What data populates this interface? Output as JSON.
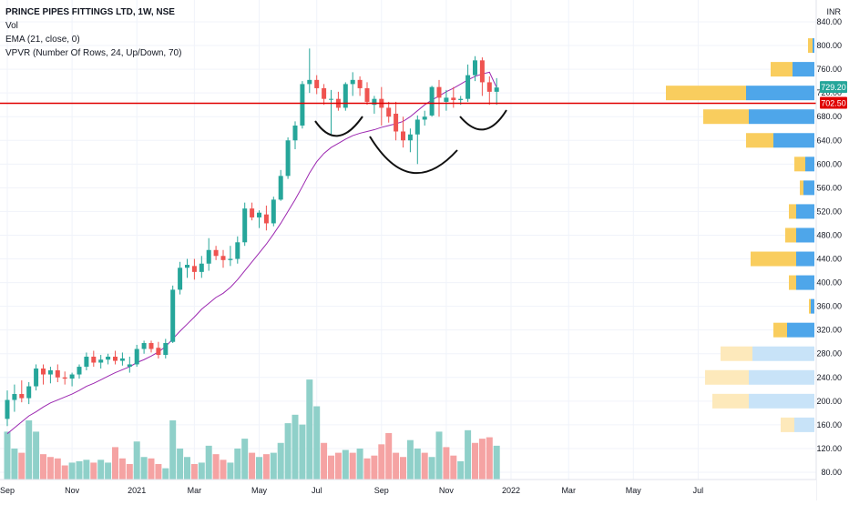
{
  "legend": {
    "title": "PRINCE PIPES FITTINGS LTD, 1W, NSE",
    "vol": "Vol",
    "ema": "EMA (21, close, 0)",
    "vpvr": "VPVR (Number Of Rows, 24, Up/Down, 70)"
  },
  "colors": {
    "up": "#26a69a",
    "down": "#ef5350",
    "vol_up": "#8fd0c9",
    "vol_down": "#f5a3a3",
    "ema": "#9c27b0",
    "hline": "#e00000",
    "vp_up": "#4ea6ea",
    "vp_down": "#f9cd5e",
    "vp_up_light": "#c8e3f8",
    "vp_down_light": "#fde9bb",
    "grid": "#f0f3fa",
    "axis_text": "#131722"
  },
  "chart_data": {
    "type": "candlestick",
    "currency": "INR",
    "price_axis_ticks": [
      "840.00",
      "800.00",
      "760.00",
      "720.00",
      "680.00",
      "640.00",
      "600.00",
      "560.00",
      "520.00",
      "480.00",
      "440.00",
      "400.00",
      "360.00",
      "320.00",
      "280.00",
      "240.00",
      "200.00",
      "160.00",
      "120.00",
      "80.00"
    ],
    "price_axis_range": [
      70,
      860
    ],
    "time_axis_labels": [
      {
        "label": "Sep",
        "i": 0
      },
      {
        "label": "Nov",
        "i": 9
      },
      {
        "label": "2021",
        "i": 18
      },
      {
        "label": "Mar",
        "i": 26
      },
      {
        "label": "May",
        "i": 35
      },
      {
        "label": "Jul",
        "i": 43
      },
      {
        "label": "Sep",
        "i": 52
      },
      {
        "label": "Nov",
        "i": 61
      },
      {
        "label": "2022",
        "i": 70
      },
      {
        "label": "Mar",
        "i": 78
      },
      {
        "label": "May",
        "i": 87
      },
      {
        "label": "Jul",
        "i": 96
      }
    ],
    "candles": [
      {
        "o": 170,
        "h": 218,
        "l": 158,
        "c": 202
      },
      {
        "o": 202,
        "h": 228,
        "l": 182,
        "c": 212
      },
      {
        "o": 212,
        "h": 235,
        "l": 198,
        "c": 205
      },
      {
        "o": 205,
        "h": 232,
        "l": 195,
        "c": 225
      },
      {
        "o": 225,
        "h": 262,
        "l": 218,
        "c": 255
      },
      {
        "o": 255,
        "h": 262,
        "l": 228,
        "c": 245
      },
      {
        "o": 245,
        "h": 258,
        "l": 230,
        "c": 252
      },
      {
        "o": 252,
        "h": 262,
        "l": 232,
        "c": 240
      },
      {
        "o": 240,
        "h": 250,
        "l": 228,
        "c": 238
      },
      {
        "o": 238,
        "h": 248,
        "l": 225,
        "c": 245
      },
      {
        "o": 245,
        "h": 262,
        "l": 238,
        "c": 258
      },
      {
        "o": 258,
        "h": 282,
        "l": 252,
        "c": 275
      },
      {
        "o": 275,
        "h": 285,
        "l": 258,
        "c": 265
      },
      {
        "o": 265,
        "h": 278,
        "l": 255,
        "c": 270
      },
      {
        "o": 270,
        "h": 280,
        "l": 262,
        "c": 275
      },
      {
        "o": 275,
        "h": 285,
        "l": 262,
        "c": 268
      },
      {
        "o": 268,
        "h": 282,
        "l": 260,
        "c": 272
      },
      {
        "o": 258,
        "h": 275,
        "l": 248,
        "c": 262
      },
      {
        "o": 262,
        "h": 295,
        "l": 258,
        "c": 288
      },
      {
        "o": 288,
        "h": 302,
        "l": 280,
        "c": 298
      },
      {
        "o": 298,
        "h": 302,
        "l": 282,
        "c": 288
      },
      {
        "o": 290,
        "h": 300,
        "l": 272,
        "c": 278
      },
      {
        "o": 278,
        "h": 305,
        "l": 272,
        "c": 298
      },
      {
        "o": 300,
        "h": 395,
        "l": 298,
        "c": 388
      },
      {
        "o": 388,
        "h": 435,
        "l": 380,
        "c": 425
      },
      {
        "o": 425,
        "h": 440,
        "l": 408,
        "c": 430
      },
      {
        "o": 428,
        "h": 440,
        "l": 405,
        "c": 418
      },
      {
        "o": 418,
        "h": 445,
        "l": 408,
        "c": 432
      },
      {
        "o": 432,
        "h": 475,
        "l": 420,
        "c": 455
      },
      {
        "o": 455,
        "h": 462,
        "l": 438,
        "c": 445
      },
      {
        "o": 445,
        "h": 455,
        "l": 425,
        "c": 438
      },
      {
        "o": 438,
        "h": 462,
        "l": 428,
        "c": 440
      },
      {
        "o": 440,
        "h": 478,
        "l": 432,
        "c": 468
      },
      {
        "o": 468,
        "h": 535,
        "l": 462,
        "c": 525
      },
      {
        "o": 525,
        "h": 535,
        "l": 505,
        "c": 510
      },
      {
        "o": 510,
        "h": 522,
        "l": 492,
        "c": 518
      },
      {
        "o": 515,
        "h": 530,
        "l": 488,
        "c": 500
      },
      {
        "o": 500,
        "h": 545,
        "l": 495,
        "c": 540
      },
      {
        "o": 540,
        "h": 590,
        "l": 538,
        "c": 580
      },
      {
        "o": 580,
        "h": 645,
        "l": 575,
        "c": 640
      },
      {
        "o": 640,
        "h": 672,
        "l": 625,
        "c": 665
      },
      {
        "o": 665,
        "h": 740,
        "l": 660,
        "c": 735
      },
      {
        "o": 735,
        "h": 795,
        "l": 720,
        "c": 742
      },
      {
        "o": 742,
        "h": 750,
        "l": 718,
        "c": 728
      },
      {
        "o": 728,
        "h": 735,
        "l": 700,
        "c": 710
      },
      {
        "o": 710,
        "h": 725,
        "l": 650,
        "c": 710
      },
      {
        "o": 710,
        "h": 722,
        "l": 690,
        "c": 695
      },
      {
        "o": 695,
        "h": 738,
        "l": 690,
        "c": 735
      },
      {
        "o": 735,
        "h": 755,
        "l": 715,
        "c": 742
      },
      {
        "o": 742,
        "h": 748,
        "l": 715,
        "c": 728
      },
      {
        "o": 728,
        "h": 738,
        "l": 700,
        "c": 705
      },
      {
        "o": 700,
        "h": 715,
        "l": 685,
        "c": 710
      },
      {
        "o": 710,
        "h": 730,
        "l": 665,
        "c": 695
      },
      {
        "o": 695,
        "h": 705,
        "l": 670,
        "c": 680
      },
      {
        "o": 685,
        "h": 705,
        "l": 640,
        "c": 655
      },
      {
        "o": 655,
        "h": 680,
        "l": 628,
        "c": 640
      },
      {
        "o": 640,
        "h": 660,
        "l": 620,
        "c": 650
      },
      {
        "o": 650,
        "h": 682,
        "l": 600,
        "c": 675
      },
      {
        "o": 675,
        "h": 690,
        "l": 665,
        "c": 680
      },
      {
        "o": 682,
        "h": 732,
        "l": 680,
        "c": 730
      },
      {
        "o": 730,
        "h": 742,
        "l": 680,
        "c": 712
      },
      {
        "o": 705,
        "h": 725,
        "l": 690,
        "c": 712
      },
      {
        "o": 712,
        "h": 730,
        "l": 695,
        "c": 708
      },
      {
        "o": 708,
        "h": 715,
        "l": 700,
        "c": 710
      },
      {
        "o": 710,
        "h": 768,
        "l": 705,
        "c": 750
      },
      {
        "o": 750,
        "h": 782,
        "l": 740,
        "c": 775
      },
      {
        "o": 775,
        "h": 780,
        "l": 715,
        "c": 738
      },
      {
        "o": 738,
        "h": 748,
        "l": 700,
        "c": 722
      },
      {
        "o": 722,
        "h": 745,
        "l": 700,
        "c": 729.2
      }
    ],
    "volume_scale": [
      0,
      420
    ],
    "volumes": [
      {
        "v": 170,
        "up": true
      },
      {
        "v": 110,
        "up": true
      },
      {
        "v": 95,
        "up": false
      },
      {
        "v": 210,
        "up": true
      },
      {
        "v": 170,
        "up": true
      },
      {
        "v": 90,
        "up": false
      },
      {
        "v": 80,
        "up": false
      },
      {
        "v": 75,
        "up": false
      },
      {
        "v": 50,
        "up": false
      },
      {
        "v": 60,
        "up": true
      },
      {
        "v": 65,
        "up": true
      },
      {
        "v": 70,
        "up": true
      },
      {
        "v": 60,
        "up": false
      },
      {
        "v": 70,
        "up": true
      },
      {
        "v": 60,
        "up": true
      },
      {
        "v": 115,
        "up": false
      },
      {
        "v": 75,
        "up": false
      },
      {
        "v": 55,
        "up": false
      },
      {
        "v": 135,
        "up": true
      },
      {
        "v": 80,
        "up": true
      },
      {
        "v": 75,
        "up": false
      },
      {
        "v": 55,
        "up": false
      },
      {
        "v": 40,
        "up": true
      },
      {
        "v": 210,
        "up": true
      },
      {
        "v": 110,
        "up": true
      },
      {
        "v": 80,
        "up": true
      },
      {
        "v": 55,
        "up": false
      },
      {
        "v": 60,
        "up": true
      },
      {
        "v": 120,
        "up": true
      },
      {
        "v": 90,
        "up": false
      },
      {
        "v": 70,
        "up": false
      },
      {
        "v": 60,
        "up": true
      },
      {
        "v": 110,
        "up": true
      },
      {
        "v": 145,
        "up": true
      },
      {
        "v": 95,
        "up": false
      },
      {
        "v": 80,
        "up": true
      },
      {
        "v": 90,
        "up": false
      },
      {
        "v": 95,
        "up": true
      },
      {
        "v": 130,
        "up": true
      },
      {
        "v": 200,
        "up": true
      },
      {
        "v": 230,
        "up": true
      },
      {
        "v": 195,
        "up": true
      },
      {
        "v": 355,
        "up": true
      },
      {
        "v": 260,
        "up": true
      },
      {
        "v": 130,
        "up": false
      },
      {
        "v": 85,
        "up": false
      },
      {
        "v": 95,
        "up": false
      },
      {
        "v": 105,
        "up": true
      },
      {
        "v": 95,
        "up": false
      },
      {
        "v": 110,
        "up": true
      },
      {
        "v": 75,
        "up": false
      },
      {
        "v": 85,
        "up": false
      },
      {
        "v": 125,
        "up": false
      },
      {
        "v": 165,
        "up": false
      },
      {
        "v": 95,
        "up": false
      },
      {
        "v": 80,
        "up": false
      },
      {
        "v": 140,
        "up": true
      },
      {
        "v": 110,
        "up": true
      },
      {
        "v": 95,
        "up": false
      },
      {
        "v": 80,
        "up": true
      },
      {
        "v": 170,
        "up": true
      },
      {
        "v": 115,
        "up": false
      },
      {
        "v": 85,
        "up": false
      },
      {
        "v": 65,
        "up": true
      },
      {
        "v": 175,
        "up": true
      },
      {
        "v": 130,
        "up": false
      },
      {
        "v": 145,
        "up": false
      },
      {
        "v": 150,
        "up": false
      },
      {
        "v": 120,
        "up": true
      }
    ],
    "ema": [
      145,
      155,
      165,
      175,
      182,
      190,
      197,
      202,
      207,
      212,
      218,
      225,
      230,
      236,
      242,
      248,
      253,
      258,
      265,
      270,
      276,
      283,
      292,
      305,
      318,
      330,
      342,
      355,
      365,
      375,
      382,
      392,
      405,
      420,
      435,
      450,
      465,
      482,
      500,
      520,
      540,
      562,
      585,
      604,
      618,
      628,
      635,
      642,
      648,
      652,
      655,
      658,
      662,
      665,
      668,
      672,
      680,
      690,
      700,
      708,
      715,
      722,
      728,
      735,
      742,
      748,
      752,
      755,
      729
    ],
    "horizontal_line": {
      "price": 702.5,
      "label": "702.50"
    },
    "last_price_label": {
      "price": 729.2,
      "label": "729.20"
    },
    "vpvr_rows": [
      {
        "price": 160,
        "up": 22,
        "down": 15,
        "light": true
      },
      {
        "price": 200,
        "up": 72,
        "down": 40,
        "light": true
      },
      {
        "price": 240,
        "up": 72,
        "down": 48,
        "light": true
      },
      {
        "price": 280,
        "up": 68,
        "down": 35,
        "light": true
      },
      {
        "price": 320,
        "up": 30,
        "down": 15,
        "light": false
      },
      {
        "price": 360,
        "up": 4,
        "down": 2,
        "light": false
      },
      {
        "price": 400,
        "up": 20,
        "down": 8,
        "light": false
      },
      {
        "price": 440,
        "up": 20,
        "down": 50,
        "light": false
      },
      {
        "price": 480,
        "up": 20,
        "down": 12,
        "light": false
      },
      {
        "price": 520,
        "up": 20,
        "down": 8,
        "light": false
      },
      {
        "price": 560,
        "up": 12,
        "down": 4,
        "light": false
      },
      {
        "price": 600,
        "up": 10,
        "down": 12,
        "light": false
      },
      {
        "price": 640,
        "up": 45,
        "down": 30,
        "light": false
      },
      {
        "price": 680,
        "up": 72,
        "down": 50,
        "light": false
      },
      {
        "price": 720,
        "up": 75,
        "down": 88,
        "light": false
      },
      {
        "price": 760,
        "up": 24,
        "down": 24,
        "light": false
      },
      {
        "price": 800,
        "up": 2,
        "down": 5,
        "light": false
      }
    ]
  }
}
